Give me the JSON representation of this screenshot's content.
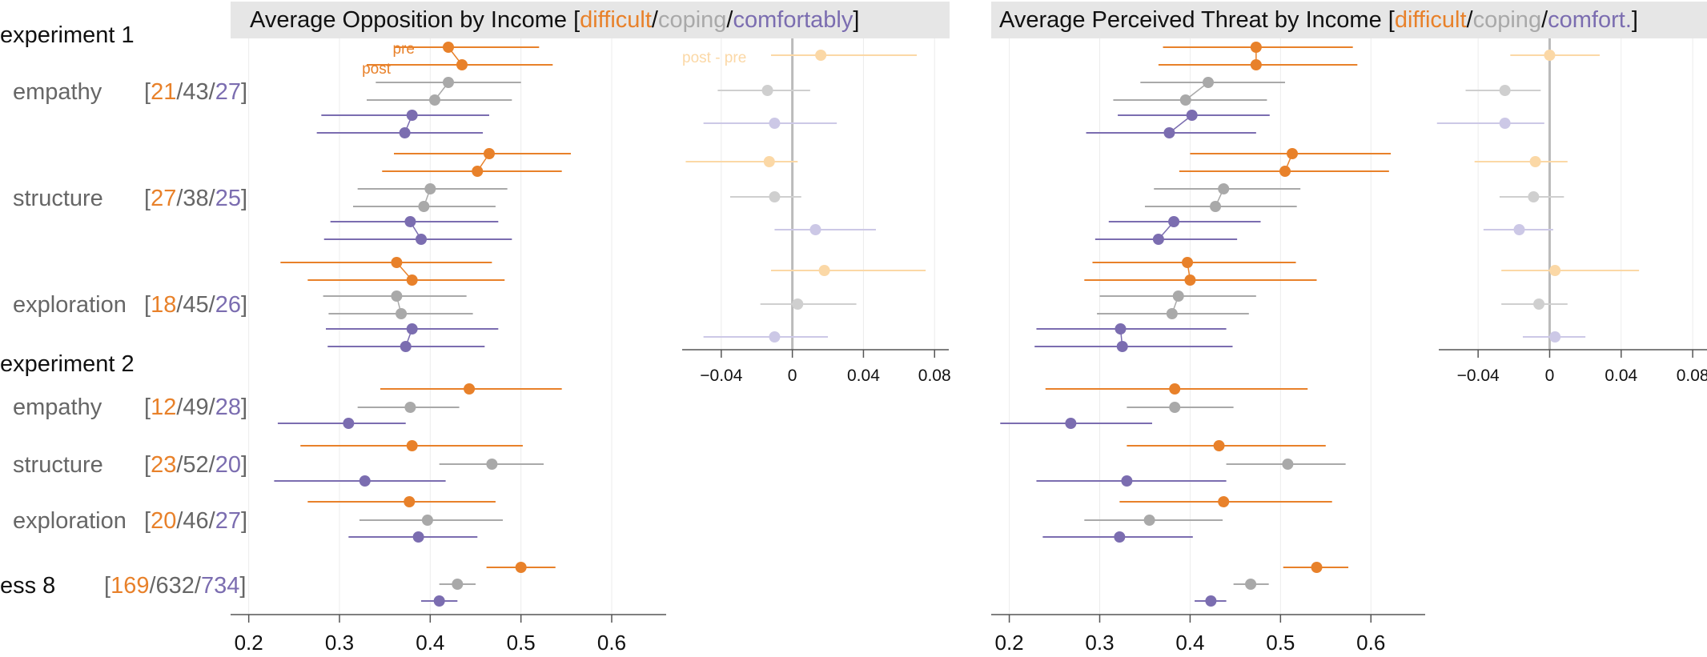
{
  "colors": {
    "difficult": "#e8812a",
    "coping": "#a9a9a9",
    "comfortably": "#7b6db0",
    "difficult_light": "#fbd8a6",
    "coping_light": "#cfcfcf",
    "comfortably_light": "#ccc8e6",
    "label_gray": "#666666"
  },
  "headings": {
    "experiment1": "experiment 1",
    "experiment2": "experiment 2"
  },
  "row_labels": [
    {
      "id": "e1-empathy",
      "name": "empathy",
      "counts": [
        "21",
        "43",
        "27"
      ]
    },
    {
      "id": "e1-structure",
      "name": "structure",
      "counts": [
        "27",
        "38",
        "25"
      ]
    },
    {
      "id": "e1-exploration",
      "name": "exploration",
      "counts": [
        "18",
        "45",
        "26"
      ]
    },
    {
      "id": "e2-empathy",
      "name": "empathy",
      "counts": [
        "12",
        "49",
        "28"
      ]
    },
    {
      "id": "e2-structure",
      "name": "structure",
      "counts": [
        "23",
        "52",
        "20"
      ]
    },
    {
      "id": "e2-exploration",
      "name": "exploration",
      "counts": [
        "20",
        "46",
        "27"
      ]
    },
    {
      "id": "ess8",
      "name": "ess 8",
      "counts": [
        "169",
        "632",
        "734"
      ]
    }
  ],
  "bracket": {
    "open": "[",
    "close": "]",
    "sep": "/"
  },
  "chart_data": [
    {
      "id": "opposition",
      "type": "scatter",
      "title_parts": [
        "Average Opposition by Income [",
        "difficult",
        "/",
        "coping",
        "/",
        "comfortably",
        "]"
      ],
      "xlim": [
        0.18,
        0.66
      ],
      "xticks": [
        "0.2",
        "0.3",
        "0.4",
        "0.5",
        "0.6"
      ],
      "annotations": {
        "pre": "pre",
        "post": "post"
      },
      "rows": [
        {
          "group": "difficult",
          "pre": [
            0.42,
            0.36,
            0.52
          ],
          "post": [
            0.435,
            0.33,
            0.535
          ]
        },
        {
          "group": "coping",
          "pre": [
            0.42,
            0.34,
            0.5
          ],
          "post": [
            0.405,
            0.33,
            0.49
          ]
        },
        {
          "group": "comfortably",
          "pre": [
            0.38,
            0.28,
            0.465
          ],
          "post": [
            0.372,
            0.275,
            0.458
          ]
        },
        {
          "group": "difficult",
          "pre": [
            0.465,
            0.36,
            0.555
          ],
          "post": [
            0.452,
            0.347,
            0.545
          ]
        },
        {
          "group": "coping",
          "pre": [
            0.4,
            0.32,
            0.485
          ],
          "post": [
            0.393,
            0.315,
            0.472
          ]
        },
        {
          "group": "comfortably",
          "pre": [
            0.378,
            0.29,
            0.475
          ],
          "post": [
            0.39,
            0.283,
            0.49
          ]
        },
        {
          "group": "difficult",
          "pre": [
            0.363,
            0.235,
            0.468
          ],
          "post": [
            0.38,
            0.265,
            0.482
          ]
        },
        {
          "group": "coping",
          "pre": [
            0.363,
            0.282,
            0.44
          ],
          "post": [
            0.368,
            0.288,
            0.447
          ]
        },
        {
          "group": "comfortably",
          "pre": [
            0.38,
            0.285,
            0.475
          ],
          "post": [
            0.373,
            0.287,
            0.46
          ]
        }
      ],
      "single": [
        {
          "group": "difficult",
          "value": [
            0.443,
            0.345,
            0.545
          ]
        },
        {
          "group": "coping",
          "value": [
            0.378,
            0.32,
            0.432
          ]
        },
        {
          "group": "comfortably",
          "value": [
            0.31,
            0.232,
            0.373
          ]
        },
        {
          "group": "difficult",
          "value": [
            0.38,
            0.257,
            0.502
          ]
        },
        {
          "group": "coping",
          "value": [
            0.468,
            0.41,
            0.525
          ]
        },
        {
          "group": "comfortably",
          "value": [
            0.328,
            0.228,
            0.417
          ]
        },
        {
          "group": "difficult",
          "value": [
            0.377,
            0.265,
            0.472
          ]
        },
        {
          "group": "coping",
          "value": [
            0.397,
            0.322,
            0.48
          ]
        },
        {
          "group": "comfortably",
          "value": [
            0.387,
            0.31,
            0.452
          ]
        },
        {
          "group": "difficult",
          "value": [
            0.5,
            0.462,
            0.538
          ]
        },
        {
          "group": "coping",
          "value": [
            0.43,
            0.41,
            0.45
          ]
        },
        {
          "group": "comfortably",
          "value": [
            0.41,
            0.39,
            0.43
          ]
        }
      ]
    },
    {
      "id": "opposition-diff",
      "type": "scatter",
      "xlim": [
        -0.062,
        0.088
      ],
      "xticks": [
        "−0.04",
        "0",
        "0.04",
        "0.08"
      ],
      "annotation": "post - pre",
      "rows": [
        {
          "group": "difficult",
          "value": [
            0.016,
            -0.012,
            0.07
          ]
        },
        {
          "group": "coping",
          "value": [
            -0.014,
            -0.042,
            0.01
          ]
        },
        {
          "group": "comfortably",
          "value": [
            -0.01,
            -0.05,
            0.025
          ]
        },
        {
          "group": "difficult",
          "value": [
            -0.013,
            -0.06,
            0.003
          ]
        },
        {
          "group": "coping",
          "value": [
            -0.01,
            -0.035,
            0.005
          ]
        },
        {
          "group": "comfortably",
          "value": [
            0.013,
            -0.01,
            0.047
          ]
        },
        {
          "group": "difficult",
          "value": [
            0.018,
            -0.012,
            0.075
          ]
        },
        {
          "group": "coping",
          "value": [
            0.003,
            -0.018,
            0.036
          ]
        },
        {
          "group": "comfortably",
          "value": [
            -0.01,
            -0.05,
            0.02
          ]
        }
      ]
    },
    {
      "id": "threat",
      "type": "scatter",
      "title_parts": [
        "Average Perceived Threat by Income [",
        "difficult",
        "/",
        "coping",
        "/",
        "comfort.",
        "]"
      ],
      "xlim": [
        0.18,
        0.66
      ],
      "xticks": [
        "0.2",
        "0.3",
        "0.4",
        "0.5",
        "0.6"
      ],
      "rows": [
        {
          "group": "difficult",
          "pre": [
            0.473,
            0.37,
            0.58
          ],
          "post": [
            0.473,
            0.365,
            0.585
          ]
        },
        {
          "group": "coping",
          "pre": [
            0.42,
            0.345,
            0.505
          ],
          "post": [
            0.395,
            0.315,
            0.485
          ]
        },
        {
          "group": "comfortably",
          "pre": [
            0.402,
            0.32,
            0.488
          ],
          "post": [
            0.377,
            0.285,
            0.473
          ]
        },
        {
          "group": "difficult",
          "pre": [
            0.513,
            0.4,
            0.622
          ],
          "post": [
            0.505,
            0.388,
            0.62
          ]
        },
        {
          "group": "coping",
          "pre": [
            0.437,
            0.36,
            0.522
          ],
          "post": [
            0.428,
            0.35,
            0.518
          ]
        },
        {
          "group": "comfortably",
          "pre": [
            0.382,
            0.31,
            0.478
          ],
          "post": [
            0.365,
            0.295,
            0.452
          ]
        },
        {
          "group": "difficult",
          "pre": [
            0.397,
            0.292,
            0.517
          ],
          "post": [
            0.4,
            0.283,
            0.54
          ]
        },
        {
          "group": "coping",
          "pre": [
            0.387,
            0.3,
            0.473
          ],
          "post": [
            0.38,
            0.297,
            0.465
          ]
        },
        {
          "group": "comfortably",
          "pre": [
            0.323,
            0.23,
            0.44
          ],
          "post": [
            0.325,
            0.228,
            0.447
          ]
        }
      ],
      "single": [
        {
          "group": "difficult",
          "value": [
            0.383,
            0.24,
            0.53
          ]
        },
        {
          "group": "coping",
          "value": [
            0.383,
            0.33,
            0.448
          ]
        },
        {
          "group": "comfortably",
          "value": [
            0.268,
            0.19,
            0.358
          ]
        },
        {
          "group": "difficult",
          "value": [
            0.432,
            0.33,
            0.55
          ]
        },
        {
          "group": "coping",
          "value": [
            0.508,
            0.44,
            0.572
          ]
        },
        {
          "group": "comfortably",
          "value": [
            0.33,
            0.23,
            0.44
          ]
        },
        {
          "group": "difficult",
          "value": [
            0.437,
            0.322,
            0.557
          ]
        },
        {
          "group": "coping",
          "value": [
            0.355,
            0.283,
            0.436
          ]
        },
        {
          "group": "comfortably",
          "value": [
            0.322,
            0.237,
            0.403
          ]
        },
        {
          "group": "difficult",
          "value": [
            0.54,
            0.503,
            0.575
          ]
        },
        {
          "group": "coping",
          "value": [
            0.467,
            0.448,
            0.487
          ]
        },
        {
          "group": "comfortably",
          "value": [
            0.423,
            0.405,
            0.44
          ]
        }
      ]
    },
    {
      "id": "threat-diff",
      "type": "scatter",
      "xlim": [
        -0.062,
        0.088
      ],
      "xticks": [
        "−0.04",
        "0",
        "0.04",
        "0.08"
      ],
      "rows": [
        {
          "group": "difficult",
          "value": [
            0.0,
            -0.022,
            0.028
          ]
        },
        {
          "group": "coping",
          "value": [
            -0.025,
            -0.047,
            -0.005
          ]
        },
        {
          "group": "comfortably",
          "value": [
            -0.025,
            -0.063,
            -0.003
          ]
        },
        {
          "group": "difficult",
          "value": [
            -0.008,
            -0.042,
            0.01
          ]
        },
        {
          "group": "coping",
          "value": [
            -0.009,
            -0.028,
            0.008
          ]
        },
        {
          "group": "comfortably",
          "value": [
            -0.017,
            -0.037,
            0.002
          ]
        },
        {
          "group": "difficult",
          "value": [
            0.003,
            -0.027,
            0.05
          ]
        },
        {
          "group": "coping",
          "value": [
            -0.006,
            -0.027,
            0.01
          ]
        },
        {
          "group": "comfortably",
          "value": [
            0.003,
            -0.015,
            0.02
          ]
        }
      ]
    }
  ]
}
